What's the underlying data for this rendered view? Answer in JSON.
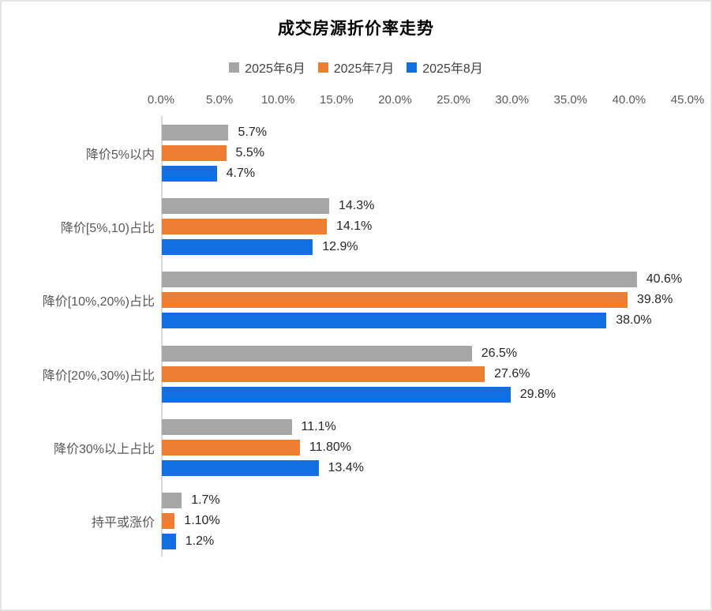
{
  "title": "成交房源折价率走势",
  "legend": [
    {
      "label": "2025年6月",
      "color": "#A6A6A6"
    },
    {
      "label": "2025年7月",
      "color": "#ED7D31"
    },
    {
      "label": "2025年8月",
      "color": "#116FE3"
    }
  ],
  "chart_data": {
    "type": "bar",
    "orientation": "horizontal",
    "title": "成交房源折价率走势",
    "categories": [
      "降价5%以内",
      "降价[5%,10)占比",
      "降价[10%,20%)占比",
      "降价[20%,30%)占比",
      "降价30%以上占比",
      "持平或涨价"
    ],
    "series": [
      {
        "name": "2025年6月",
        "color": "#A6A6A6",
        "values": [
          5.7,
          14.3,
          40.6,
          26.5,
          11.1,
          1.7
        ],
        "labels": [
          "5.7%",
          "14.3%",
          "40.6%",
          "26.5%",
          "11.1%",
          "1.7%"
        ]
      },
      {
        "name": "2025年7月",
        "color": "#ED7D31",
        "values": [
          5.5,
          14.1,
          39.8,
          27.6,
          11.8,
          1.1
        ],
        "labels": [
          "5.5%",
          "14.1%",
          "39.8%",
          "27.6%",
          "11.80%",
          "1.10%"
        ]
      },
      {
        "name": "2025年8月",
        "color": "#116FE3",
        "values": [
          4.7,
          12.9,
          38.0,
          29.8,
          13.4,
          1.2
        ],
        "labels": [
          "4.7%",
          "12.9%",
          "38.0%",
          "29.8%",
          "13.4%",
          "1.2%"
        ]
      }
    ],
    "x_axis": {
      "ticks": [
        "0.0%",
        "5.0%",
        "10.0%",
        "15.0%",
        "20.0%",
        "25.0%",
        "30.0%",
        "35.0%",
        "40.0%",
        "45.0%"
      ],
      "min": 0,
      "max": 45
    },
    "ylabel": "",
    "xlabel": "",
    "grid": false,
    "legend_position": "top"
  }
}
